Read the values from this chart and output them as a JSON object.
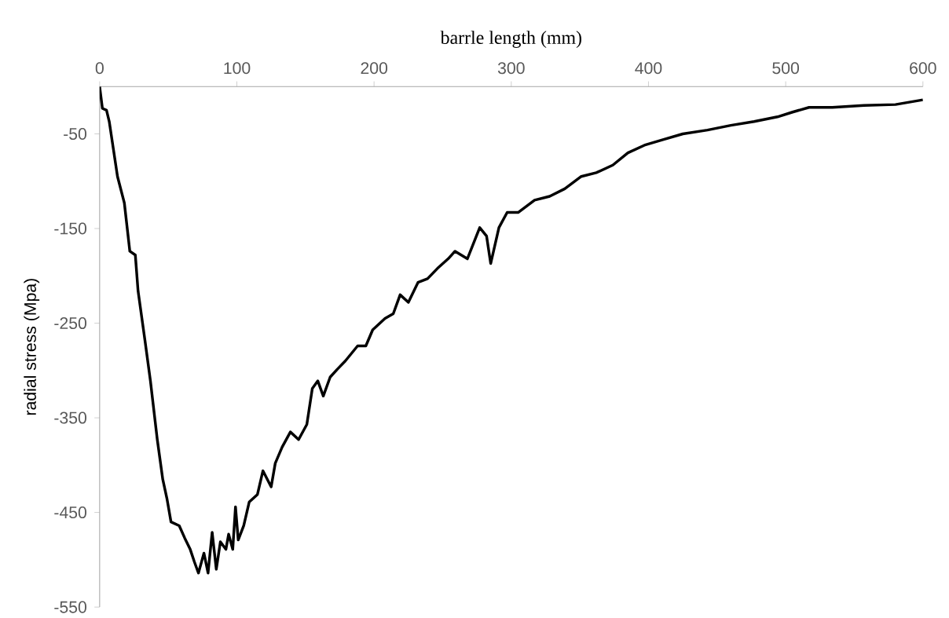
{
  "chart_data": {
    "type": "line",
    "xlabel": "barrle length (mm)",
    "ylabel": "radial stress (Mpa)",
    "xlim": [
      0,
      600
    ],
    "ylim": [
      -550,
      0
    ],
    "xticks": [
      0,
      100,
      200,
      300,
      400,
      500,
      600
    ],
    "yticks": [
      -550,
      -450,
      -350,
      -250,
      -150,
      -50
    ],
    "series": [
      {
        "color": "#000000",
        "x": [
          0,
          2,
          5,
          7,
          10,
          13,
          18,
          22,
          26,
          28,
          33,
          37,
          42,
          46,
          49,
          52,
          58,
          62,
          66,
          69,
          72,
          76,
          79,
          82,
          85,
          88,
          92,
          94,
          97,
          99,
          101,
          105,
          109,
          115,
          119,
          125,
          128,
          133,
          139,
          145,
          151,
          155,
          159,
          163,
          168,
          173,
          179,
          188,
          194,
          199,
          208,
          214,
          219,
          225,
          232,
          239,
          247,
          254,
          259,
          268,
          277,
          282,
          285,
          291,
          297,
          305,
          317,
          328,
          339,
          351,
          362,
          374,
          385,
          397,
          411,
          425,
          443,
          460,
          477,
          494,
          505,
          517,
          534,
          557,
          580,
          600
        ],
        "values": [
          0,
          -23,
          -25,
          -37,
          -66,
          -95,
          -123,
          -174,
          -178,
          -216,
          -268,
          -311,
          -373,
          -415,
          -435,
          -460,
          -464,
          -477,
          -489,
          -502,
          -514,
          -493,
          -514,
          -471,
          -510,
          -481,
          -489,
          -473,
          -489,
          -444,
          -479,
          -464,
          -439,
          -431,
          -406,
          -423,
          -398,
          -381,
          -365,
          -373,
          -357,
          -319,
          -311,
          -327,
          -307,
          -299,
          -290,
          -274,
          -274,
          -257,
          -245,
          -240,
          -220,
          -228,
          -207,
          -203,
          -191,
          -182,
          -174,
          -182,
          -149,
          -158,
          -187,
          -149,
          -133,
          -133,
          -120,
          -116,
          -108,
          -95,
          -91,
          -83,
          -70,
          -62,
          -56,
          -50,
          -46,
          -41,
          -37,
          -32,
          -27,
          -22,
          -22,
          -20,
          -19,
          -14
        ]
      }
    ]
  }
}
